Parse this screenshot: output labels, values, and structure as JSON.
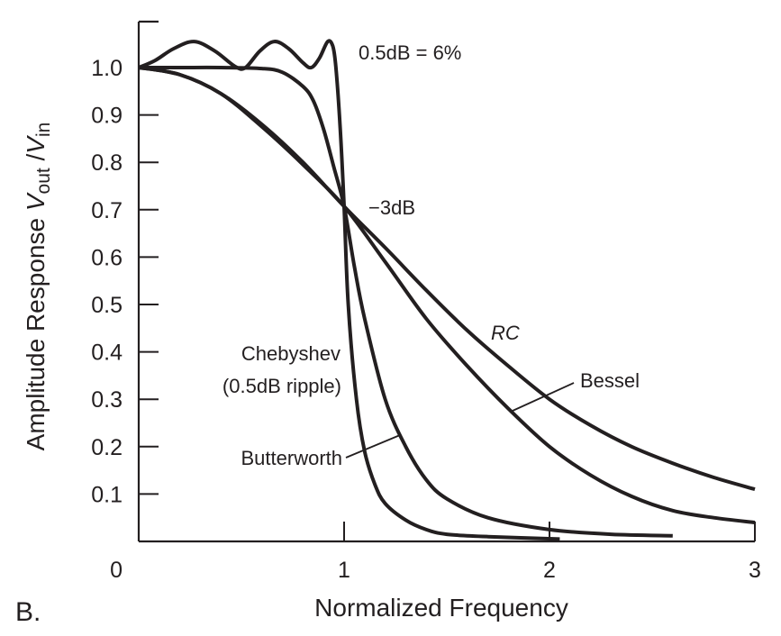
{
  "chart_data": {
    "type": "line",
    "panel_label": "B.",
    "title": "",
    "xlabel": "Normalized Frequency",
    "ylabel": {
      "prefix": "Amplitude Response ",
      "v1": "V",
      "sub1": "out",
      "sep": " /",
      "v2": "V",
      "sub2": "in"
    },
    "xlim": [
      0,
      3
    ],
    "ylim": [
      0,
      1.1
    ],
    "x_ticks": [
      0,
      1,
      2,
      3
    ],
    "x_tick_labels": [
      "0",
      "1",
      "2",
      "3"
    ],
    "y_ticks": [
      0.1,
      0.2,
      0.3,
      0.4,
      0.5,
      0.6,
      0.7,
      0.8,
      0.9,
      1.0
    ],
    "y_tick_labels": [
      "0.1",
      "0.2",
      "0.3",
      "0.4",
      "0.5",
      "0.6",
      "0.7",
      "0.8",
      "0.9",
      "1.0"
    ],
    "y_origin_label": "0",
    "grid": false,
    "series": [
      {
        "name": "Chebyshev (0.5dB ripple)",
        "x": [
          0,
          0.08,
          0.17,
          0.27,
          0.37,
          0.47,
          0.52,
          0.59,
          0.66,
          0.73,
          0.8,
          0.84,
          0.88,
          0.92,
          0.945,
          0.96,
          0.98,
          1.0,
          1.02,
          1.06,
          1.1,
          1.15,
          1.2,
          1.3,
          1.4,
          1.5,
          1.7,
          2.05
        ],
        "y": [
          1.0,
          1.015,
          1.04,
          1.055,
          1.035,
          1.002,
          1.0,
          1.035,
          1.055,
          1.04,
          1.01,
          1.0,
          1.02,
          1.055,
          1.045,
          1.0,
          0.88,
          0.707,
          0.5,
          0.3,
          0.19,
          0.12,
          0.08,
          0.045,
          0.025,
          0.015,
          0.01,
          0.005
        ]
      },
      {
        "name": "Butterworth",
        "x": [
          0,
          0.2,
          0.4,
          0.6,
          0.7,
          0.8,
          0.85,
          0.9,
          0.95,
          1.0,
          1.05,
          1.1,
          1.2,
          1.3,
          1.4,
          1.5,
          1.7,
          2.0,
          2.3,
          2.6
        ],
        "y": [
          1.0,
          1.0,
          1.0,
          0.998,
          0.99,
          0.96,
          0.93,
          0.87,
          0.79,
          0.707,
          0.58,
          0.47,
          0.3,
          0.2,
          0.13,
          0.09,
          0.05,
          0.025,
          0.015,
          0.012
        ]
      },
      {
        "name": "Bessel",
        "x": [
          0,
          0.2,
          0.4,
          0.6,
          0.8,
          1.0,
          1.2,
          1.4,
          1.6,
          1.8,
          2.0,
          2.2,
          2.4,
          2.6,
          2.8,
          3.0
        ],
        "y": [
          1.0,
          0.985,
          0.945,
          0.875,
          0.795,
          0.707,
          0.59,
          0.47,
          0.37,
          0.28,
          0.2,
          0.14,
          0.095,
          0.065,
          0.05,
          0.04
        ]
      },
      {
        "name": "RC",
        "x": [
          0,
          0.2,
          0.4,
          0.6,
          0.8,
          1.0,
          1.2,
          1.4,
          1.6,
          1.8,
          2.0,
          2.2,
          2.4,
          2.6,
          2.8,
          3.0
        ],
        "y": [
          1.0,
          0.985,
          0.945,
          0.88,
          0.8,
          0.707,
          0.62,
          0.53,
          0.445,
          0.37,
          0.3,
          0.245,
          0.2,
          0.165,
          0.135,
          0.11
        ]
      }
    ],
    "annotations": [
      {
        "text": "0.5dB = 6%",
        "style": "normal"
      },
      {
        "text": "−3dB",
        "style": "normal"
      },
      {
        "text": "RC",
        "style": "italic"
      },
      {
        "text": "Bessel",
        "style": "normal"
      },
      {
        "text": "Chebyshev",
        "style": "normal"
      },
      {
        "text": "(0.5dB ripple)",
        "style": "normal"
      },
      {
        "text": "Butterworth",
        "style": "normal"
      }
    ]
  }
}
